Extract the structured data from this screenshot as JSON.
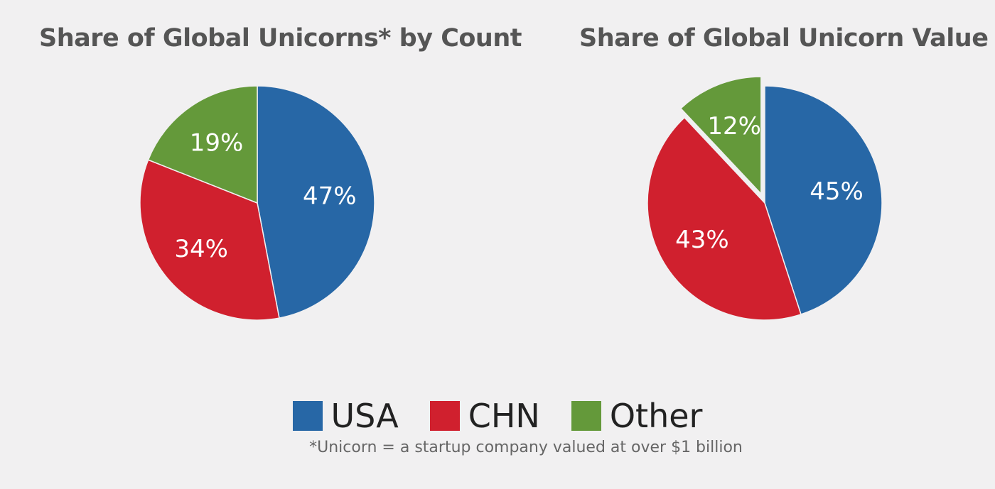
{
  "colors": {
    "background": "#f1f0f1",
    "USA": "#2767a6",
    "CHN": "#d0202e",
    "Other": "#64993a",
    "label_text": "#ffffff"
  },
  "legend": [
    {
      "key": "USA",
      "label": "USA",
      "color": "#2767a6"
    },
    {
      "key": "CHN",
      "label": "CHN",
      "color": "#d0202e"
    },
    {
      "key": "Other",
      "label": "Other",
      "color": "#64993a"
    }
  ],
  "footnote": "*Unicorn = a startup company valued at over $1 billion",
  "chart_data": [
    {
      "type": "pie",
      "title": "Share of Global Unicorns* by Count",
      "categories": [
        "USA",
        "CHN",
        "Other"
      ],
      "values": [
        47,
        34,
        19
      ],
      "labels": [
        "47%",
        "34%",
        "19%"
      ],
      "unit": "%",
      "exploded": "none",
      "legend": "shared, bottom-center"
    },
    {
      "type": "pie",
      "title": "Share of Global Unicorn Value",
      "categories": [
        "USA",
        "CHN",
        "Other"
      ],
      "values": [
        45,
        43,
        12
      ],
      "labels": [
        "45%",
        "43%",
        "12%"
      ],
      "unit": "%",
      "exploded": "Other",
      "legend": "shared, bottom-center"
    }
  ]
}
